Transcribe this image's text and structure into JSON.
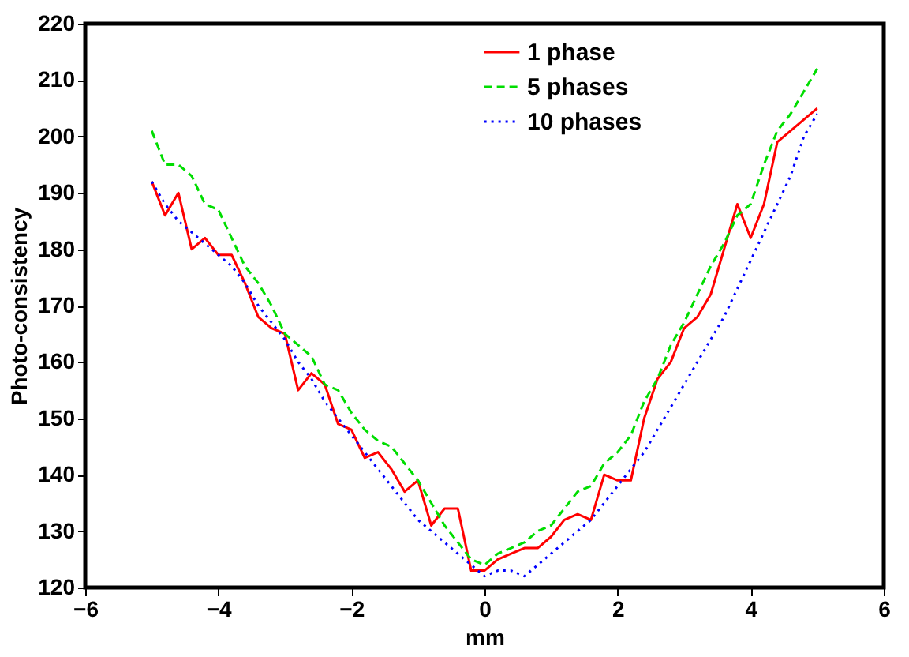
{
  "chart_data": {
    "type": "line",
    "xlabel": "mm",
    "ylabel": "Photo-consistency",
    "x": [
      -5,
      -4.8,
      -4.6,
      -4.4,
      -4.2,
      -4,
      -3.8,
      -3.6,
      -3.4,
      -3.2,
      -3,
      -2.8,
      -2.6,
      -2.4,
      -2.2,
      -2,
      -1.8,
      -1.6,
      -1.4,
      -1.2,
      -1,
      -0.8,
      -0.6,
      -0.4,
      -0.2,
      0,
      0.2,
      0.4,
      0.6,
      0.8,
      1,
      1.2,
      1.4,
      1.6,
      1.8,
      2,
      2.2,
      2.4,
      2.6,
      2.8,
      3,
      3.2,
      3.4,
      3.6,
      3.8,
      4,
      4.2,
      4.4,
      4.6,
      4.8,
      5
    ],
    "series": [
      {
        "name": "1 phase",
        "color": "#ff0000",
        "line_style": "solid",
        "values": [
          192,
          186,
          190,
          180,
          182,
          179,
          179,
          174,
          168,
          166,
          165,
          155,
          158,
          156,
          149,
          148,
          143,
          144,
          141,
          137,
          139,
          131,
          134,
          134,
          123,
          123,
          125,
          126,
          127,
          127,
          129,
          132,
          133,
          132,
          140,
          139,
          139,
          150,
          157,
          160,
          166,
          168,
          172,
          180,
          188,
          182,
          188,
          199,
          201,
          203,
          205
        ]
      },
      {
        "name": "5 phases",
        "color": "#00dd00",
        "line_style": "dashed",
        "values": [
          201,
          195,
          195,
          193,
          188,
          187,
          182,
          177,
          174,
          170,
          165,
          163,
          161,
          156,
          155,
          151,
          148,
          146,
          145,
          142,
          139,
          135,
          131,
          128,
          125,
          124,
          126,
          127,
          128,
          130,
          131,
          134,
          137,
          138,
          142,
          144,
          147,
          153,
          157,
          163,
          167,
          172,
          177,
          181,
          186,
          188,
          195,
          201,
          204,
          208,
          212
        ]
      },
      {
        "name": "10 phases",
        "color": "#0000ff",
        "line_style": "dotted",
        "values": [
          192,
          188,
          185,
          183,
          181,
          179,
          177,
          174,
          170,
          167,
          164,
          160,
          157,
          153,
          150,
          147,
          144,
          141,
          138,
          135,
          132,
          130,
          128,
          126,
          124,
          122,
          123,
          123,
          122,
          124,
          126,
          128,
          130,
          132,
          135,
          138,
          141,
          144,
          148,
          152,
          156,
          160,
          164,
          168,
          173,
          178,
          183,
          188,
          193,
          200,
          204
        ]
      }
    ],
    "xlim": [
      -6,
      6
    ],
    "xticks": [
      -6,
      -4,
      -2,
      0,
      2,
      4,
      6
    ],
    "ylim": [
      120,
      220
    ],
    "yticks": [
      120,
      130,
      140,
      150,
      160,
      170,
      180,
      190,
      200,
      210,
      220
    ],
    "grid": false,
    "legend": "top right",
    "marker": "none"
  }
}
